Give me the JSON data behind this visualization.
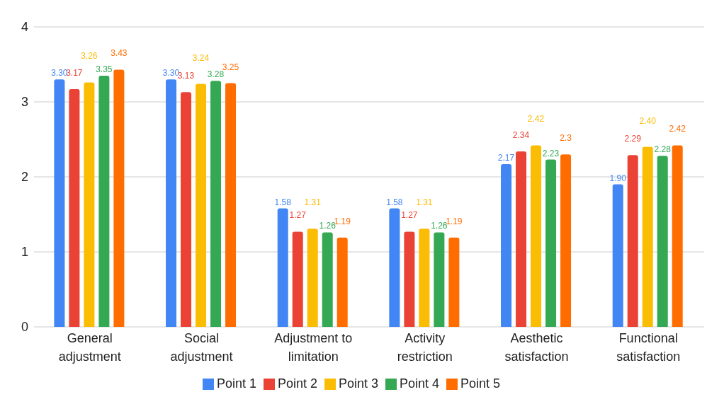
{
  "chart_data": {
    "type": "bar",
    "categories": [
      "General adjustment",
      "Social adjustment",
      "Adjustment to limitation",
      "Activity restriction",
      "Aesthetic satisfaction",
      "Functional satisfaction"
    ],
    "series": [
      {
        "name": "Point 1",
        "color": "#4285f4",
        "values": [
          3.3,
          3.3,
          1.58,
          1.58,
          2.17,
          1.9
        ],
        "value_labels": [
          "3.30",
          "3.30",
          "1.58",
          "1.58",
          "2.17",
          "1.90"
        ]
      },
      {
        "name": "Point 2",
        "color": "#ea4335",
        "values": [
          3.17,
          3.13,
          1.27,
          1.27,
          2.34,
          2.29
        ],
        "value_labels": [
          "3.17",
          "3.13",
          "1.27",
          "1.27",
          "2.34",
          "2.29"
        ]
      },
      {
        "name": "Point 3",
        "color": "#fbbc04",
        "values": [
          3.26,
          3.24,
          1.31,
          1.31,
          2.42,
          2.4
        ],
        "value_labels": [
          "3.26",
          "3.24",
          "1.31",
          "1.31",
          "2.42",
          "2.40"
        ]
      },
      {
        "name": "Point 4",
        "color": "#34a853",
        "values": [
          3.35,
          3.28,
          1.26,
          1.26,
          2.23,
          2.28
        ],
        "value_labels": [
          "3.35",
          "3.28",
          "1.26",
          "1.26",
          "2.23",
          "2.28"
        ]
      },
      {
        "name": "Point 5",
        "color": "#ff6d01",
        "values": [
          3.43,
          3.25,
          1.19,
          1.19,
          2.3,
          2.42
        ],
        "value_labels": [
          "3.43",
          "3.25",
          "1.19",
          "1.19",
          "2.3",
          "2.42"
        ]
      }
    ],
    "ylim": [
      0,
      4
    ],
    "yticks": [
      0,
      1,
      2,
      3,
      4
    ],
    "grid": "y",
    "legend": "bottom"
  }
}
